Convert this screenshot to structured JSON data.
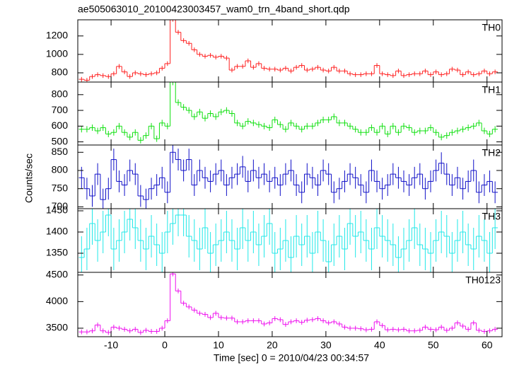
{
  "figure": {
    "title": "ae505063010_20100423003457_wam0_trn_4band_short.qdp",
    "xlabel": "Time [sec] 0 = 2010/04/23 00:34:57",
    "ylabel": "Counts/sec",
    "xlim": [
      -16.2,
      62.8
    ],
    "xticks": [
      -10,
      0,
      10,
      20,
      30,
      40,
      50,
      60
    ],
    "x": [
      -15.5,
      -14.5,
      -13.5,
      -12.5,
      -11.5,
      -10.5,
      -9.5,
      -8.5,
      -7.5,
      -6.5,
      -5.5,
      -4.5,
      -3.5,
      -2.5,
      -1.5,
      -0.5,
      0.5,
      1.5,
      2.5,
      3.5,
      4.5,
      5.5,
      6.5,
      7.5,
      8.5,
      9.5,
      10.5,
      11.5,
      12.5,
      13.5,
      14.5,
      15.5,
      16.5,
      17.5,
      18.5,
      19.5,
      20.5,
      21.5,
      22.5,
      23.5,
      24.5,
      25.5,
      26.5,
      27.5,
      28.5,
      29.5,
      30.5,
      31.5,
      32.5,
      33.5,
      34.5,
      35.5,
      36.5,
      37.5,
      38.5,
      39.5,
      40.5,
      41.5,
      42.5,
      43.5,
      44.5,
      45.5,
      46.5,
      47.5,
      48.5,
      49.5,
      50.5,
      51.5,
      52.5,
      53.5,
      54.5,
      55.5,
      56.5,
      57.5,
      58.5,
      59.5,
      60.5,
      61.5
    ]
  },
  "chart_data": [
    {
      "type": "step",
      "label": "TH0",
      "color": "#ff2020",
      "ylim": [
        700,
        1375
      ],
      "yticks": [
        800,
        1000,
        1200
      ],
      "error": 25,
      "values": [
        730,
        720,
        760,
        780,
        770,
        760,
        790,
        870,
        810,
        760,
        800,
        790,
        780,
        790,
        800,
        850,
        900,
        1380,
        1240,
        1150,
        1120,
        1050,
        1000,
        980,
        990,
        970,
        980,
        960,
        830,
        870,
        870,
        930,
        860,
        900,
        850,
        840,
        840,
        830,
        850,
        820,
        860,
        880,
        830,
        840,
        860,
        830,
        820,
        860,
        820,
        820,
        790,
        780,
        780,
        790,
        790,
        880,
        790,
        780,
        770,
        820,
        770,
        780,
        790,
        790,
        820,
        780,
        810,
        780,
        790,
        840,
        830,
        780,
        810,
        780,
        790,
        820,
        790,
        810
      ]
    },
    {
      "type": "step",
      "label": "TH1",
      "color": "#10e010",
      "ylim": [
        480,
        880
      ],
      "yticks": [
        500,
        600,
        700,
        800
      ],
      "error": 20,
      "values": [
        580,
        580,
        590,
        570,
        590,
        550,
        560,
        600,
        560,
        530,
        560,
        510,
        540,
        600,
        520,
        620,
        600,
        880,
        750,
        720,
        700,
        660,
        690,
        650,
        680,
        660,
        690,
        700,
        680,
        620,
        600,
        630,
        620,
        610,
        600,
        590,
        640,
        610,
        580,
        620,
        600,
        580,
        600,
        600,
        620,
        640,
        640,
        660,
        620,
        620,
        600,
        580,
        560,
        560,
        590,
        560,
        600,
        550,
        600,
        560,
        600,
        590,
        560,
        570,
        570,
        590,
        560,
        530,
        540,
        560,
        570,
        580,
        590,
        600,
        620,
        570,
        550,
        580
      ]
    },
    {
      "type": "step",
      "label": "TH2",
      "color": "#1010c8",
      "ylim": [
        695,
        870
      ],
      "yticks": [
        700,
        750,
        800,
        850
      ],
      "error": 30,
      "values": [
        780,
        750,
        730,
        790,
        720,
        750,
        830,
        770,
        760,
        800,
        790,
        730,
        720,
        750,
        760,
        780,
        740,
        850,
        830,
        800,
        830,
        760,
        800,
        780,
        770,
        790,
        800,
        760,
        780,
        790,
        810,
        770,
        800,
        780,
        790,
        770,
        780,
        760,
        790,
        800,
        760,
        740,
        790,
        780,
        760,
        800,
        790,
        740,
        750,
        770,
        790,
        780,
        760,
        740,
        800,
        770,
        750,
        760,
        790,
        780,
        770,
        760,
        780,
        790,
        750,
        770,
        800,
        820,
        790,
        760,
        780,
        750,
        770,
        800,
        740,
        760,
        770,
        740
      ]
    },
    {
      "type": "step",
      "label": "TH3",
      "color": "#20e8e8",
      "ylim": [
        1305,
        1455
      ],
      "yticks": [
        1350,
        1400,
        1450
      ],
      "error": 50,
      "values": [
        1340,
        1360,
        1420,
        1380,
        1400,
        1440,
        1360,
        1380,
        1400,
        1430,
        1410,
        1380,
        1360,
        1390,
        1370,
        1350,
        1400,
        1420,
        1440,
        1440,
        1390,
        1380,
        1360,
        1410,
        1350,
        1370,
        1380,
        1400,
        1380,
        1360,
        1410,
        1380,
        1400,
        1370,
        1390,
        1420,
        1350,
        1360,
        1380,
        1340,
        1390,
        1370,
        1390,
        1350,
        1400,
        1380,
        1330,
        1370,
        1390,
        1360,
        1420,
        1390,
        1400,
        1380,
        1360,
        1410,
        1390,
        1380,
        1370,
        1340,
        1360,
        1380,
        1410,
        1370,
        1360,
        1350,
        1380,
        1400,
        1390,
        1350,
        1380,
        1400,
        1370,
        1360,
        1390,
        1380,
        1350,
        1410
      ]
    },
    {
      "type": "step",
      "label": "TH0123",
      "color": "#ee10ee",
      "ylim": [
        3340,
        4550
      ],
      "yticks": [
        3500,
        4000,
        4500
      ],
      "error": 45,
      "values": [
        3430,
        3430,
        3450,
        3560,
        3450,
        3420,
        3520,
        3500,
        3480,
        3450,
        3480,
        3420,
        3460,
        3440,
        3440,
        3500,
        3640,
        4520,
        4200,
        3970,
        3900,
        3840,
        3780,
        3760,
        3700,
        3780,
        3700,
        3690,
        3690,
        3620,
        3620,
        3640,
        3640,
        3640,
        3580,
        3600,
        3680,
        3660,
        3570,
        3620,
        3640,
        3610,
        3650,
        3660,
        3680,
        3640,
        3600,
        3620,
        3580,
        3520,
        3500,
        3500,
        3490,
        3470,
        3480,
        3620,
        3550,
        3470,
        3480,
        3470,
        3480,
        3450,
        3450,
        3460,
        3520,
        3480,
        3470,
        3520,
        3460,
        3500,
        3600,
        3540,
        3480,
        3600,
        3460,
        3440,
        3450,
        3480
      ]
    }
  ]
}
